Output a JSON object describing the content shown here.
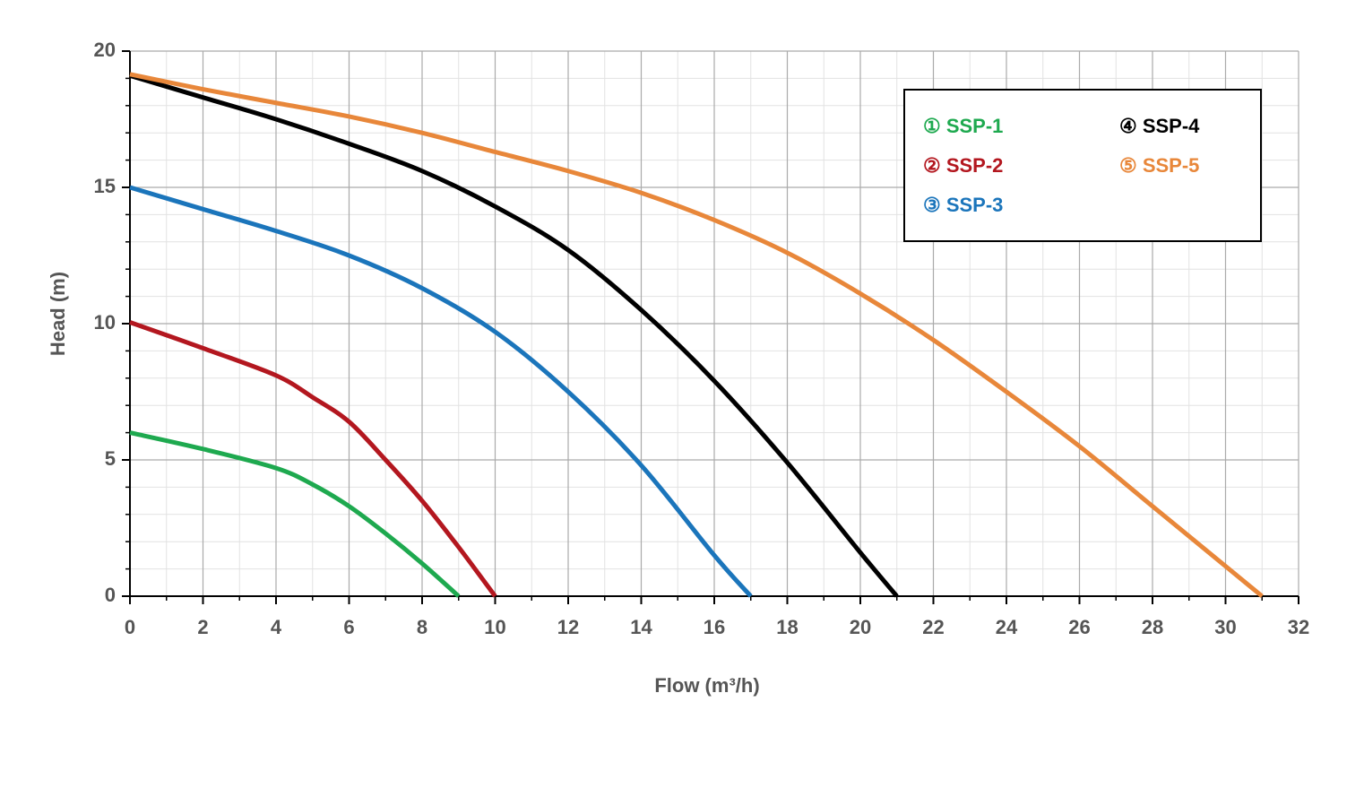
{
  "chart_data": {
    "type": "line",
    "x_label": "Flow (m³/h)",
    "y_label": "Head (m)",
    "xlim": [
      0,
      32
    ],
    "ylim": [
      0,
      20
    ],
    "xticks": [
      0,
      2,
      4,
      6,
      8,
      10,
      12,
      14,
      16,
      18,
      20,
      22,
      24,
      26,
      28,
      30,
      32
    ],
    "yticks": [
      0,
      5,
      10,
      15,
      20
    ],
    "xminorticks": [
      0,
      1,
      2,
      3,
      4,
      5,
      6,
      7,
      8,
      9,
      10,
      11,
      12,
      13,
      14,
      15,
      16,
      17,
      18,
      19,
      20,
      21,
      22,
      23,
      24,
      25,
      26,
      27,
      28,
      29,
      30,
      31,
      32
    ],
    "yminorticks": [
      0,
      1,
      2,
      3,
      4,
      5,
      6,
      7,
      8,
      9,
      10,
      11,
      12,
      13,
      14,
      15,
      16,
      17,
      18,
      19,
      20
    ],
    "grid": true,
    "legend": "upper right",
    "series": [
      {
        "name": "① SSP-1",
        "color": "#1ea94f",
        "x": [
          0,
          2,
          4,
          5,
          6,
          7,
          8,
          9
        ],
        "values": [
          6,
          5.4,
          4.7,
          4.1,
          3.3,
          2.3,
          1.2,
          0
        ]
      },
      {
        "name": "② SSP-2",
        "color": "#b3171f",
        "x": [
          0,
          2,
          4,
          5,
          6,
          7,
          8,
          9,
          10
        ],
        "values": [
          10.05,
          9.1,
          8.1,
          7.3,
          6.4,
          5,
          3.5,
          1.8,
          0
        ]
      },
      {
        "name": "③ SSP-3",
        "color": "#1b75bb",
        "x": [
          0,
          2,
          4,
          6,
          8,
          10,
          12,
          14,
          16,
          17
        ],
        "values": [
          15,
          14.2,
          13.4,
          12.5,
          11.3,
          9.7,
          7.5,
          4.8,
          1.5,
          0
        ]
      },
      {
        "name": "④ SSP-4",
        "color": "#000000",
        "x": [
          0,
          2,
          4,
          6,
          8,
          10,
          12,
          14,
          16,
          18,
          20,
          21
        ],
        "values": [
          19.1,
          18.3,
          17.5,
          16.6,
          15.6,
          14.3,
          12.7,
          10.5,
          7.9,
          4.9,
          1.6,
          0
        ]
      },
      {
        "name": "⑤ SSP-5",
        "color": "#e8873a",
        "x": [
          0,
          2,
          4,
          6,
          8,
          10,
          12,
          14,
          16,
          18,
          20,
          22,
          24,
          26,
          28,
          30,
          31
        ],
        "values": [
          19.15,
          18.6,
          18.1,
          17.6,
          17,
          16.3,
          15.6,
          14.8,
          13.8,
          12.6,
          11.1,
          9.4,
          7.5,
          5.5,
          3.3,
          1.1,
          0
        ]
      }
    ]
  }
}
